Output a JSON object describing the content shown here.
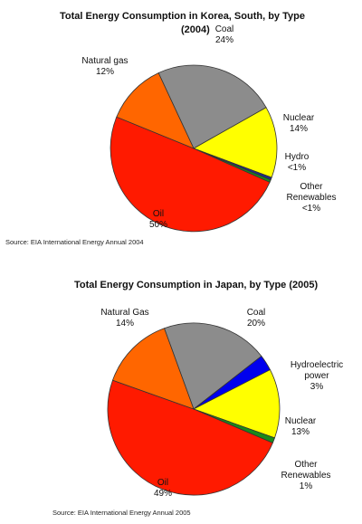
{
  "chart_data": [
    {
      "type": "pie",
      "title": "Total Energy Consumption in Korea, South, by Type",
      "subtitle": "(2004)",
      "source": "Source: EIA International Energy Annual 2004",
      "slices": [
        {
          "label": "Coal",
          "value_text": "24%",
          "value": 24,
          "color": "#8c8c8c"
        },
        {
          "label": "Nuclear",
          "value_text": "14%",
          "value": 14,
          "color": "#ffff00"
        },
        {
          "label": "Hydro",
          "value_text": "<1%",
          "value": 0.5,
          "color": "#1f2a8a"
        },
        {
          "label": "Other Renewables",
          "value_text": "<1%",
          "value": 0.5,
          "color": "#1a8a1a"
        },
        {
          "label": "Oil",
          "value_text": "50%",
          "value": 50,
          "color": "#ff1a00"
        },
        {
          "label": "Natural gas",
          "value_text": "12%",
          "value": 12,
          "color": "#ff6600"
        }
      ]
    },
    {
      "type": "pie",
      "title": "Total Energy Consumption in Japan, by Type (2005)",
      "source": "Source: EIA International Energy Annual 2005",
      "slices": [
        {
          "label": "Coal",
          "value_text": "20%",
          "value": 20,
          "color": "#8c8c8c"
        },
        {
          "label": "Hydroelectric power",
          "value_text": "3%",
          "value": 3,
          "color": "#0000ee"
        },
        {
          "label": "Nuclear",
          "value_text": "13%",
          "value": 13,
          "color": "#ffff00"
        },
        {
          "label": "Other Renewables",
          "value_text": "1%",
          "value": 1,
          "color": "#1a8a1a"
        },
        {
          "label": "Oil",
          "value_text": "49%",
          "value": 49,
          "color": "#ff1a00"
        },
        {
          "label": "Natural Gas",
          "value_text": "14%",
          "value": 14,
          "color": "#ff6600"
        }
      ]
    }
  ]
}
